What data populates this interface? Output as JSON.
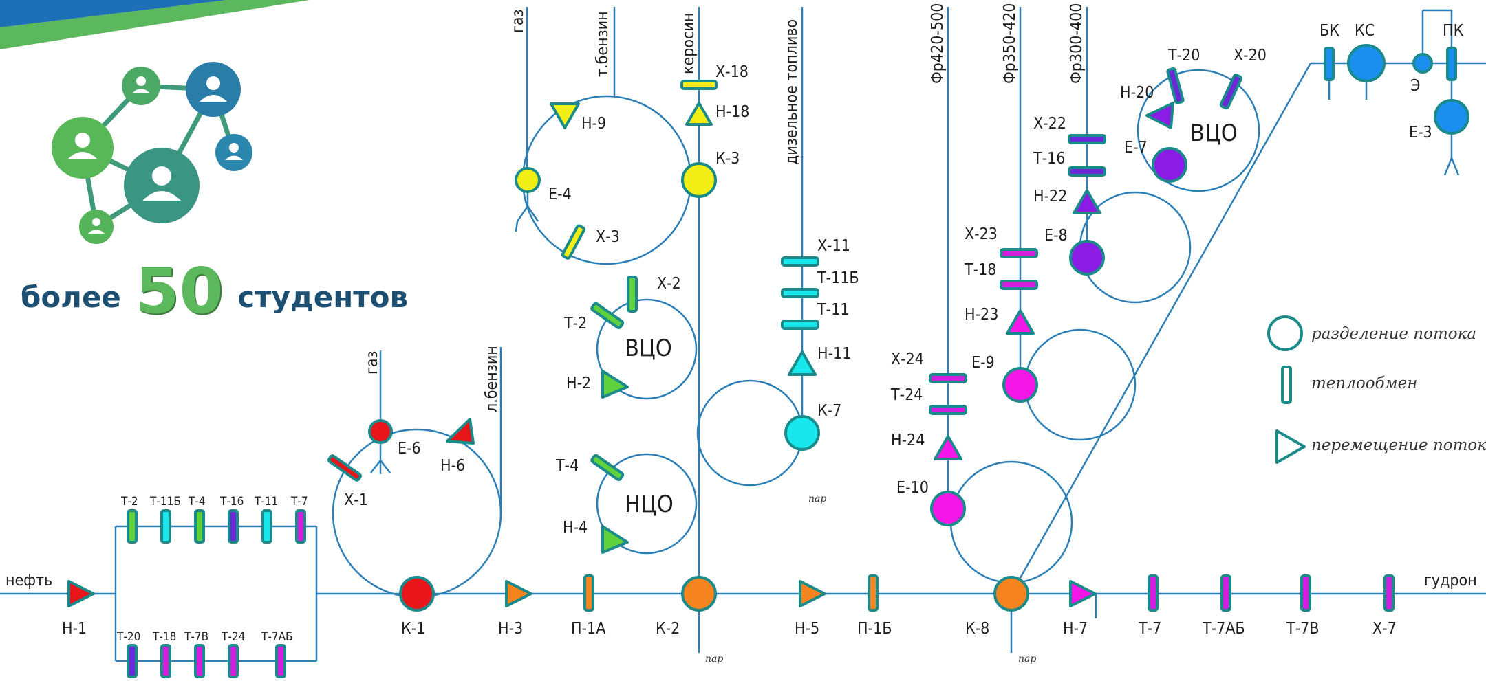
{
  "badge": {
    "prefix": "более",
    "number": "50",
    "suffix": "студентов"
  },
  "colors": {
    "line": "#2b7fb6",
    "outline": "#1b8a8a",
    "red": "#e8151b",
    "orange": "#f5841f",
    "yellow": "#f2ef17",
    "cyan": "#18e8ec",
    "magenta": "#f516e8",
    "purple": "#8a1ce6",
    "blue": "#1a8ff0",
    "green": "#5fd13d"
  },
  "stream_labels": {
    "oil": "нефть",
    "gudron": "гудрон",
    "gaz_top": "газ",
    "t_benzin": "т.бензин",
    "kerosin": "керосин",
    "diesel": "дизельное топливо",
    "gaz_k1": "газ",
    "l_benzin": "л.бензин",
    "fr420": "Фр420-500",
    "fr350": "Фр350-420",
    "fr300": "Фр300-400",
    "par1": "пар",
    "par2": "пар",
    "par3": "пар"
  },
  "labels": {
    "N1": "Н-1",
    "K1": "К-1",
    "N3": "Н-3",
    "P1A": "П-1А",
    "K2": "К-2",
    "N5": "Н-5",
    "P1B": "П-1Б",
    "K8": "К-8",
    "N7": "Н-7",
    "T7b": "Т-7",
    "T7ABb": "Т-7АБ",
    "T7Vb": "Т-7В",
    "X7": "Х-7",
    "E6": "Е-6",
    "N6": "Н-6",
    "X1": "Х-1",
    "N9": "Н-9",
    "E4": "Е-4",
    "X3": "Х-3",
    "X18": "Х-18",
    "N18": "Н-18",
    "K3": "К-3",
    "X2": "Х-2",
    "T2": "Т-2",
    "N2": "Н-2",
    "VCO1": "ВЦО",
    "T4": "Т-4",
    "N4": "Н-4",
    "NCO": "НЦО",
    "X11": "Х-11",
    "T11B": "Т-11Б",
    "T11": "Т-11",
    "N11": "Н-11",
    "K7": "К-7",
    "X24": "Х-24",
    "T24": "Т-24",
    "N24": "Н-24",
    "E10": "Е-10",
    "X23": "Х-23",
    "T18": "Т-18",
    "N23": "Н-23",
    "E9": "Е-9",
    "X22": "Х-22",
    "T16": "Т-16",
    "N22": "Н-22",
    "E8": "Е-8",
    "N20": "Н-20",
    "T20": "Т-20",
    "X20": "Х-20",
    "E7": "Е-7",
    "VCO2": "ВЦО",
    "BK": "БК",
    "KS": "КС",
    "PK": "ПК",
    "E": "Э",
    "E3": "Е-3"
  },
  "hx_top": [
    "Т-2",
    "Т-11Б",
    "Т-4",
    "Т-16",
    "Т-11",
    "Т-7"
  ],
  "hx_bottom": [
    "Т-20",
    "Т-18",
    "Т-7В",
    "Т-24",
    "Т-7АБ"
  ],
  "legend": {
    "split": "разделение потока",
    "heat": "теплообмен",
    "move": "перемещение потока"
  }
}
